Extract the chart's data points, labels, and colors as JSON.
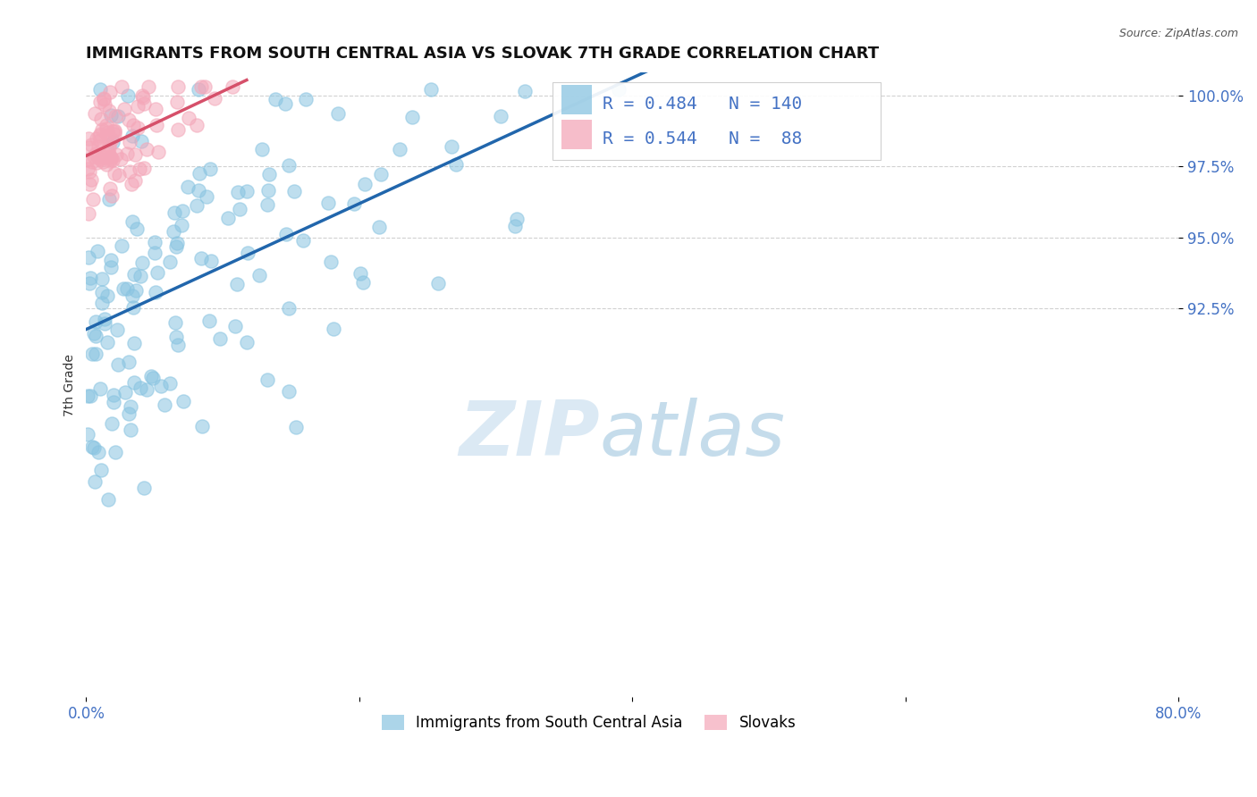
{
  "title": "IMMIGRANTS FROM SOUTH CENTRAL ASIA VS SLOVAK 7TH GRADE CORRELATION CHART",
  "source_text": "Source: ZipAtlas.com",
  "ylabel": "7th Grade",
  "x_min": 0.0,
  "x_max": 0.8,
  "y_min": 0.788,
  "y_max": 1.008,
  "x_ticks": [
    0.0,
    0.2,
    0.4,
    0.6,
    0.8
  ],
  "x_tick_labels": [
    "0.0%",
    "",
    "",
    "",
    "80.0%"
  ],
  "y_ticks": [
    0.925,
    0.95,
    0.975,
    1.0
  ],
  "y_tick_labels": [
    "92.5%",
    "95.0%",
    "97.5%",
    "100.0%"
  ],
  "blue_color": "#89c4e1",
  "pink_color": "#f4a7b9",
  "blue_line_color": "#2166ac",
  "pink_line_color": "#d6506a",
  "R_blue": 0.484,
  "N_blue": 140,
  "R_pink": 0.544,
  "N_pink": 88,
  "legend_label_blue": "Immigrants from South Central Asia",
  "legend_label_pink": "Slovaks",
  "watermark_zip": "ZIP",
  "watermark_atlas": "atlas",
  "blue_seed": 42,
  "pink_seed": 7
}
